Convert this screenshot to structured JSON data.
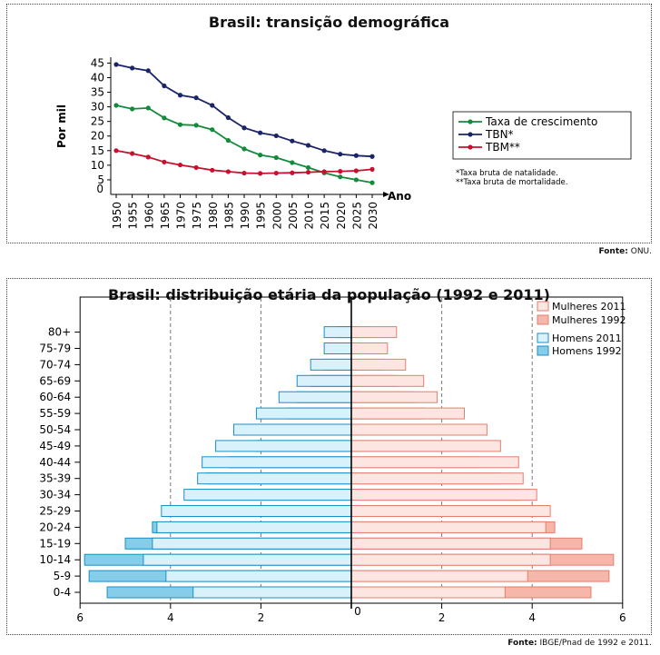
{
  "colors": {
    "growth": "#138a3c",
    "tbn": "#1a2468",
    "tbm": "#c8102e",
    "men_2011_fill": "#d9f1fb",
    "men_1992_fill": "#86cdea",
    "men_stroke": "#1a8fc8",
    "women_2011_fill": "#fde6e1",
    "women_1992_fill": "#f6b6aa",
    "women_stroke": "#e27f6e"
  },
  "charts": [
    {
      "title": "Brasil: transição demográfica",
      "source_label": "Fonte:",
      "source_text": "ONU.",
      "footnotes": [
        "*Taxa bruta de natalidade.",
        "**Taxa bruta de mortalidade."
      ]
    },
    {
      "title": "Brasil: distribuição etária da população (1992 e 2011)",
      "source_label": "Fonte:",
      "source_text": "IBGE/Pnad de 1992 e 2011."
    }
  ],
  "chart_data": [
    {
      "type": "line",
      "title": "Brasil: transição demográfica",
      "xlabel": "Ano",
      "ylabel": "Por mil",
      "x": [
        1950,
        1955,
        1960,
        1965,
        1970,
        1975,
        1980,
        1985,
        1990,
        1995,
        2000,
        2005,
        2010,
        2015,
        2020,
        2025,
        2030
      ],
      "ylim": [
        0,
        47
      ],
      "yticks": [
        0,
        5,
        10,
        15,
        20,
        25,
        30,
        35,
        40,
        45
      ],
      "legend_position": "right",
      "series": [
        {
          "name": "Taxa de crescimento",
          "color_key": "growth",
          "values": [
            30.5,
            29.3,
            29.6,
            26.2,
            23.9,
            23.7,
            22.2,
            18.5,
            15.6,
            13.5,
            12.6,
            10.9,
            9.2,
            7.4,
            6.0,
            5.0,
            4.0
          ]
        },
        {
          "name": "TBN*",
          "color_key": "tbn",
          "values": [
            44.5,
            43.3,
            42.4,
            37.2,
            34.0,
            33.1,
            30.5,
            26.3,
            22.8,
            21.1,
            20.1,
            18.3,
            16.8,
            15.0,
            13.8,
            13.3,
            13.0
          ]
        },
        {
          "name": "TBM**",
          "color_key": "tbm",
          "values": [
            15.0,
            14.0,
            12.8,
            11.1,
            10.1,
            9.2,
            8.3,
            7.8,
            7.3,
            7.2,
            7.3,
            7.4,
            7.6,
            7.8,
            7.9,
            8.1,
            8.6
          ]
        }
      ]
    },
    {
      "type": "bar",
      "subtype": "population-pyramid",
      "title": "Brasil: distribuição etária da população (1992 e 2011)",
      "categories": [
        "0-4",
        "5-9",
        "10-14",
        "15-19",
        "20-24",
        "25-29",
        "30-34",
        "35-39",
        "40-44",
        "45-49",
        "50-54",
        "55-59",
        "60-64",
        "65-69",
        "70-74",
        "75-79",
        "80+"
      ],
      "xlim": [
        -6,
        6
      ],
      "xticks": [
        6,
        4,
        2,
        0,
        2,
        4,
        6
      ],
      "grid_lines": [
        -4,
        -2,
        2,
        4
      ],
      "legend_position": "top-right",
      "series": [
        {
          "name": "Homens 2011",
          "side": "left",
          "values": [
            3.5,
            4.1,
            4.6,
            4.4,
            4.3,
            4.2,
            3.7,
            3.4,
            3.3,
            3.0,
            2.6,
            2.1,
            1.6,
            1.2,
            0.9,
            0.6,
            0.6
          ]
        },
        {
          "name": "Homens 1992",
          "side": "left",
          "values": [
            5.4,
            5.8,
            5.9,
            5.0,
            4.4,
            4.0,
            3.6,
            3.2,
            2.7,
            2.1,
            1.7,
            1.4,
            1.2,
            0.9,
            0.6,
            0.4,
            0.3
          ]
        },
        {
          "name": "Mulheres 2011",
          "side": "right",
          "values": [
            3.4,
            3.9,
            4.4,
            4.4,
            4.3,
            4.4,
            4.1,
            3.8,
            3.7,
            3.3,
            3.0,
            2.5,
            1.9,
            1.6,
            1.2,
            0.8,
            1.0
          ]
        },
        {
          "name": "Mulheres 1992",
          "side": "right",
          "values": [
            5.3,
            5.7,
            5.8,
            5.1,
            4.5,
            4.1,
            3.7,
            3.3,
            2.8,
            2.2,
            1.9,
            1.6,
            1.4,
            1.0,
            0.7,
            0.5,
            0.4
          ]
        }
      ]
    }
  ]
}
